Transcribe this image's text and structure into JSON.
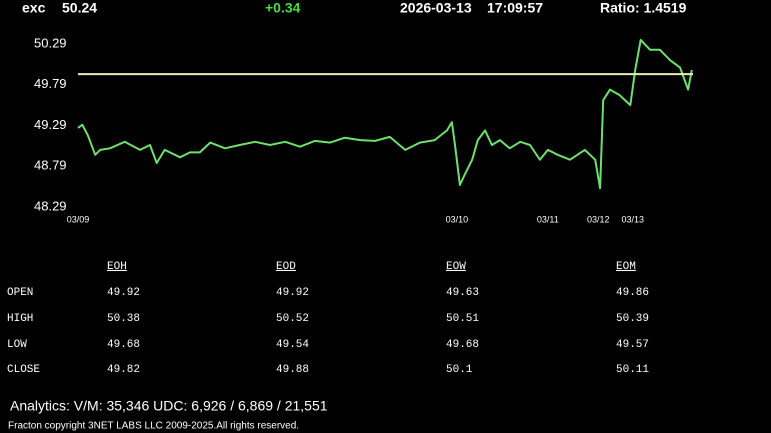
{
  "header": {
    "symbol": "exc",
    "price": "50.24",
    "change": "+0.34",
    "date": "2026-03-13",
    "time": "17:09:57",
    "ratio": "Ratio: 1.4519"
  },
  "chart_data": {
    "type": "line",
    "color": "#6fe06f",
    "x": [
      0,
      0.7,
      1.6,
      2.8,
      3.6,
      5.2,
      7.6,
      10.1,
      11.7,
      12.8,
      14.1,
      16.6,
      18.2,
      19.8,
      21.5,
      23.9,
      26.3,
      28.8,
      31.2,
      33.7,
      36.1,
      38.5,
      41.0,
      43.4,
      45.9,
      48.3,
      50.7,
      53.2,
      55.6,
      58.0,
      60.0,
      60.8,
      61.3,
      62.1,
      62.9,
      64.1,
      65.0,
      66.2,
      67.3,
      68.6,
      70.2,
      71.9,
      73.5,
      75.1,
      76.4,
      78.0,
      80.0,
      82.4,
      84.1,
      84.9,
      85.4,
      86.5,
      88.1,
      89.8,
      90.6,
      91.5,
      93.0,
      94.6,
      96.3,
      97.9,
      99.2,
      99.8
    ],
    "values": [
      49.26,
      49.3,
      49.17,
      48.93,
      48.99,
      49.01,
      49.09,
      48.99,
      49.05,
      48.83,
      48.99,
      48.9,
      48.96,
      48.96,
      49.08,
      49.01,
      49.05,
      49.09,
      49.05,
      49.09,
      49.03,
      49.1,
      49.08,
      49.14,
      49.11,
      49.1,
      49.15,
      48.99,
      49.08,
      49.11,
      49.23,
      49.33,
      49.05,
      48.56,
      48.69,
      48.87,
      49.11,
      49.23,
      49.05,
      49.11,
      49.01,
      49.09,
      49.05,
      48.87,
      48.99,
      48.93,
      48.87,
      48.99,
      48.87,
      48.52,
      49.6,
      49.73,
      49.66,
      49.54,
      49.97,
      50.34,
      50.22,
      50.22,
      50.09,
      50.0,
      49.73,
      49.97
    ],
    "xlim": [
      0,
      100
    ],
    "xticks": [
      {
        "value": 0,
        "label": "03/09"
      },
      {
        "value": 61.6,
        "label": "03/10"
      },
      {
        "value": 76.4,
        "label": "03/11"
      },
      {
        "value": 84.6,
        "label": "03/12"
      },
      {
        "value": 90.2,
        "label": "03/13"
      }
    ],
    "ylim": [
      48.2,
      50.4
    ],
    "yticks": [
      50.29,
      49.79,
      49.29,
      48.79,
      48.29
    ],
    "reference_line": 49.92,
    "reference_color": "#e6f0b4"
  },
  "table": {
    "columns": [
      "EOH",
      "EOD",
      "EOW",
      "EOM"
    ],
    "rows": [
      [
        "OPEN",
        49.92,
        49.92,
        49.63,
        49.86
      ],
      [
        "HIGH",
        50.38,
        50.52,
        50.51,
        50.39
      ],
      [
        "LOW",
        49.68,
        49.54,
        49.68,
        49.57
      ],
      [
        "CLOSE",
        49.82,
        49.88,
        50.1,
        50.11
      ]
    ]
  },
  "footer": {
    "analytics": "Analytics:  V/M: 35,346   UDC:  6,926  / 6,869    / 21,551",
    "copyright": "Fracton copyright 3NET LABS LLC 2009-2025.All rights reserved."
  }
}
